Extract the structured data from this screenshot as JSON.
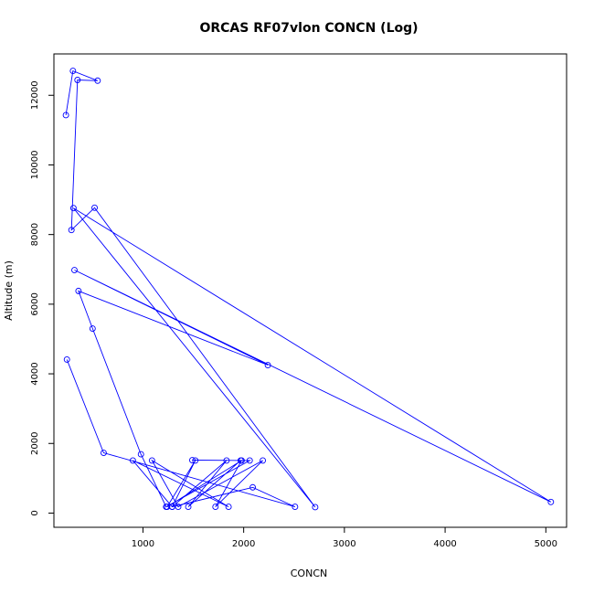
{
  "chart_data": {
    "type": "line",
    "title": "ORCAS RF07vlon CONCN (Log)",
    "xlabel": "CONCN",
    "ylabel": "Altitude (m)",
    "xlim": [
      116,
      5206
    ],
    "ylim": [
      -408,
      13188
    ],
    "x_ticks": [
      1000,
      2000,
      3000,
      4000,
      5000
    ],
    "x_tick_labels": [
      "1000",
      "2000",
      "3000",
      "4000",
      "5000"
    ],
    "y_ticks": [
      0,
      2000,
      4000,
      6000,
      8000,
      10000,
      12000
    ],
    "y_tick_labels": [
      "0",
      "2000",
      "4000",
      "6000",
      "8000",
      "10000",
      "12000"
    ],
    "grid": false,
    "markers": "open circles",
    "series": [
      {
        "color": "#0000ff",
        "x": [
          235,
          305,
          550,
          350,
          290,
          520,
          2710,
          310,
          5050,
          320,
          2240,
          360,
          500,
          980,
          1230,
          2060,
          1490,
          1970,
          1450,
          1830,
          1290,
          1520,
          1240,
          1980,
          1720,
          2190,
          1350,
          1090,
          1850,
          900,
          1290,
          2090,
          2510,
          610,
          245
        ],
        "y": [
          11430,
          12700,
          12420,
          12440,
          8130,
          8770,
          170,
          8760,
          320,
          6980,
          4250,
          6380,
          5300,
          1690,
          180,
          1510,
          1520,
          1510,
          180,
          1510,
          180,
          1510,
          180,
          1510,
          180,
          1510,
          180,
          1510,
          180,
          1510,
          180,
          740,
          180,
          1730,
          4410
        ]
      }
    ]
  }
}
